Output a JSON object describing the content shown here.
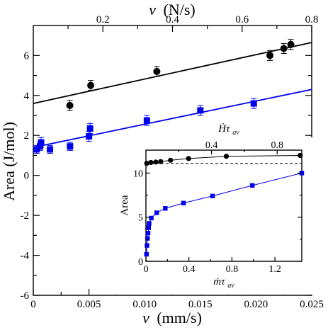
{
  "chart_data": [
    {
      "id": "main",
      "type": "scatter",
      "xlabel_var": "v",
      "xlabel_unit": "(mm/s)",
      "ylabel": "Area (J/mol)",
      "x2label_var": "v",
      "x2label_unit": "(N/s)",
      "xlim": [
        0,
        0.025
      ],
      "ylim": [
        -6,
        7.5
      ],
      "x2lim": [
        0,
        0.8
      ],
      "xticks": [
        0,
        0.005,
        0.01,
        0.015,
        0.02,
        0.025
      ],
      "xtick_labels": [
        "0",
        "0.005",
        "0.010",
        "0.015",
        "0.020",
        "0.025"
      ],
      "yticks": [
        -6,
        -4,
        -2,
        0,
        2,
        4,
        6
      ],
      "ytick_labels": [
        "-6",
        "-4",
        "-2",
        "0",
        "2",
        "4",
        "6"
      ],
      "x2ticks": [
        0.2,
        0.4,
        0.6,
        0.8
      ],
      "x2tick_labels": [
        "0.2",
        "0.4",
        "0.6",
        "0.8"
      ],
      "grid": false,
      "series": [
        {
          "marker": "circle",
          "color": "#000000",
          "axis": "top",
          "points": [
            {
              "x": 0.105,
              "y": 3.5,
              "err": 0.25
            },
            {
              "x": 0.165,
              "y": 4.5,
              "err": 0.25
            },
            {
              "x": 0.355,
              "y": 5.2,
              "err": 0.25
            },
            {
              "x": 0.68,
              "y": 6.0,
              "err": 0.25
            },
            {
              "x": 0.72,
              "y": 6.35,
              "err": 0.25
            },
            {
              "x": 0.74,
              "y": 6.55,
              "err": 0.25
            }
          ],
          "fit": {
            "x0": 0,
            "y0": 3.6,
            "x1": 0.8,
            "y1": 6.65
          }
        },
        {
          "marker": "square",
          "color": "#0000ee",
          "axis": "bottom",
          "points": [
            {
              "x": 0.0003,
              "y": 1.3,
              "err": 0.2
            },
            {
              "x": 0.0006,
              "y": 1.45,
              "err": 0.2
            },
            {
              "x": 0.0007,
              "y": 1.65,
              "err": 0.25
            },
            {
              "x": 0.0015,
              "y": 1.3,
              "err": 0.2
            },
            {
              "x": 0.0033,
              "y": 1.45,
              "err": 0.2
            },
            {
              "x": 0.005,
              "y": 1.95,
              "err": 0.25
            },
            {
              "x": 0.0051,
              "y": 2.35,
              "err": 0.25
            },
            {
              "x": 0.0102,
              "y": 2.75,
              "err": 0.25
            },
            {
              "x": 0.015,
              "y": 3.25,
              "err": 0.25
            },
            {
              "x": 0.0198,
              "y": 3.6,
              "err": 0.25
            }
          ],
          "fit": {
            "x0": 0,
            "y0": 1.4,
            "x1": 0.025,
            "y1": 4.3
          }
        }
      ]
    },
    {
      "id": "inset",
      "type": "line",
      "ylabel": "Area",
      "xlabel_bottom": "ṁτ",
      "xlabel_bottom_sub": "av",
      "xlabel_top": "Ḣτ",
      "xlabel_top_sub": "av",
      "xlim": [
        0,
        1.45
      ],
      "ylim": [
        0,
        12.6
      ],
      "x2lim": [
        0,
        0.95
      ],
      "xticks": [
        0,
        0.4,
        0.8,
        1.2
      ],
      "xtick_labels": [
        "0",
        "0.4",
        "0.8",
        "1.2"
      ],
      "yticks": [
        0,
        5,
        10
      ],
      "ytick_labels": [
        "0",
        "5",
        "10"
      ],
      "x2ticks": [
        0.4,
        0.8
      ],
      "x2tick_labels": [
        "0.4",
        "0.8"
      ],
      "reference_line_y": 11.1,
      "series": [
        {
          "marker": "circle",
          "color": "#000000",
          "axis": "top",
          "x": [
            0.005,
            0.03,
            0.06,
            0.09,
            0.15,
            0.26,
            0.49,
            0.94
          ],
          "y": [
            11.1,
            11.2,
            11.25,
            11.3,
            11.45,
            11.65,
            11.9,
            12.0
          ]
        },
        {
          "marker": "square",
          "color": "#0000ee",
          "axis": "bottom",
          "x": [
            0.005,
            0.01,
            0.015,
            0.02,
            0.025,
            0.03,
            0.05,
            0.1,
            0.18,
            0.35,
            0.62,
            0.99,
            1.45
          ],
          "y": [
            0.8,
            1.8,
            2.6,
            3.2,
            3.8,
            4.3,
            4.9,
            5.5,
            6.0,
            6.6,
            7.4,
            8.6,
            10.0
          ]
        }
      ]
    }
  ]
}
